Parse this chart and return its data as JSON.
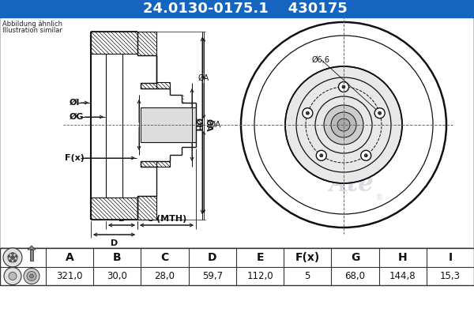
{
  "title_part_number": "24.0130-0175.1",
  "title_ref": "430175",
  "title_bg_color": "#1565c0",
  "title_text_color": "#ffffff",
  "note_line1": "Abbildung ähnlich",
  "note_line2": "Illustration similar",
  "bg_color": "#ffffff",
  "diagram_bg": "#ffffff",
  "table_headers": [
    "A",
    "B",
    "C",
    "D",
    "E",
    "F(x)",
    "G",
    "H",
    "I"
  ],
  "table_values": [
    "321,0",
    "30,0",
    "28,0",
    "59,7",
    "112,0",
    "5",
    "68,0",
    "144,8",
    "15,3"
  ],
  "watermark_color": "#c8cfd8",
  "line_color": "#111111",
  "dim_line_color": "#111111"
}
